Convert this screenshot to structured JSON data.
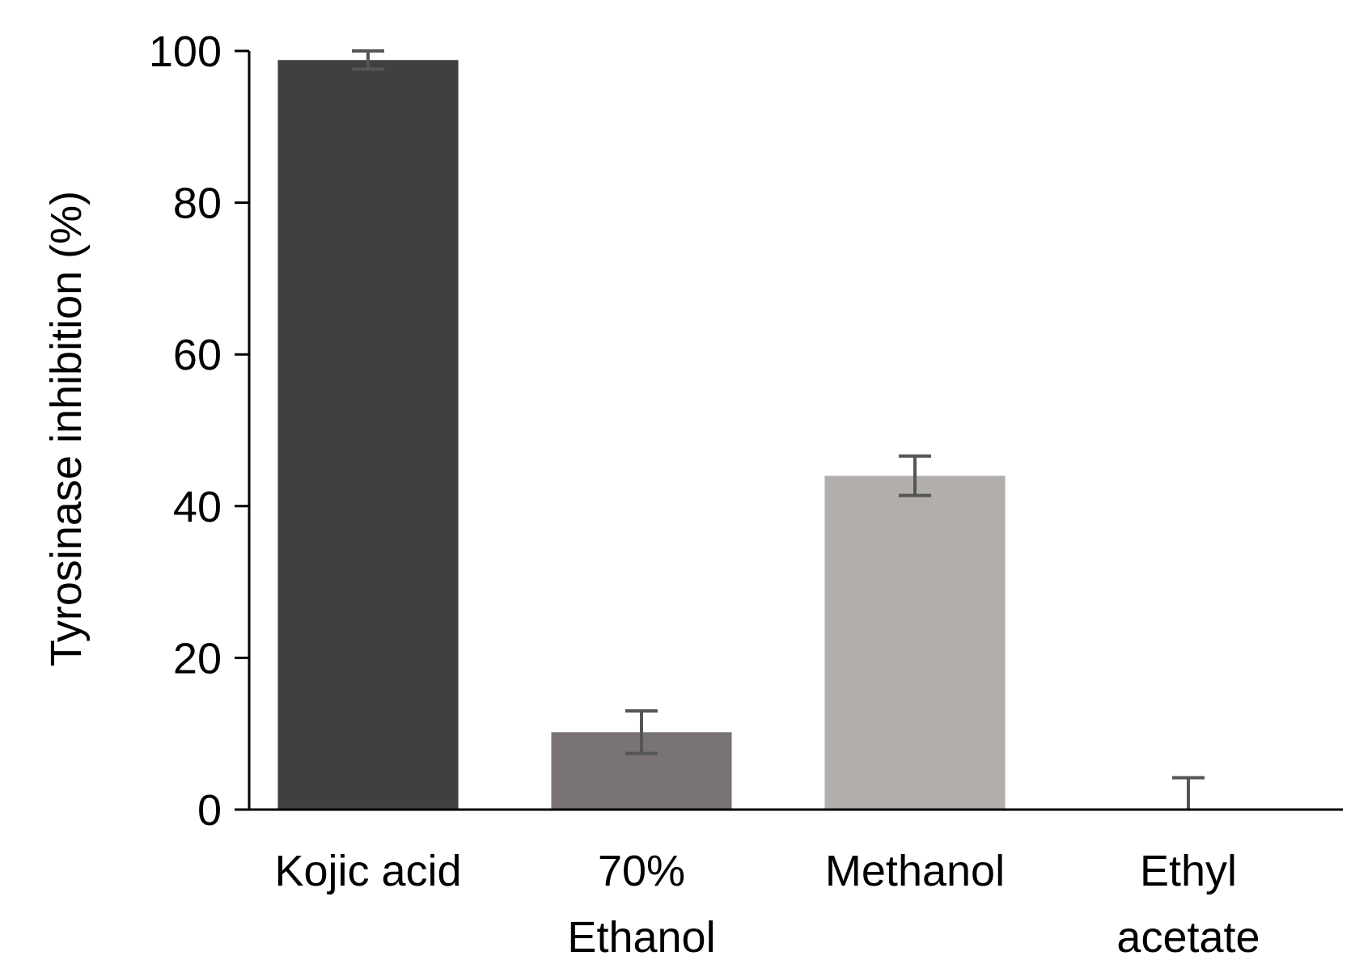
{
  "chart_data": {
    "type": "bar",
    "categories": [
      [
        "Kojic acid"
      ],
      [
        "70%",
        "Ethanol"
      ],
      [
        "Methanol"
      ],
      [
        "Ethyl",
        "acetate"
      ]
    ],
    "values": [
      98.8,
      10.2,
      44.0,
      0.0
    ],
    "errors": [
      1.2,
      2.8,
      2.6,
      4.2
    ],
    "colors": [
      "#404040",
      "#797373",
      "#b2aeac",
      "#ffffff"
    ],
    "error_bar_color": "#555555",
    "xlabel": "",
    "ylabel": "Tyrosinase inhibition (%)",
    "ylim": [
      0,
      100
    ],
    "yticks": [
      0,
      20,
      40,
      60,
      80,
      100
    ],
    "grid": false,
    "legend": "none"
  }
}
